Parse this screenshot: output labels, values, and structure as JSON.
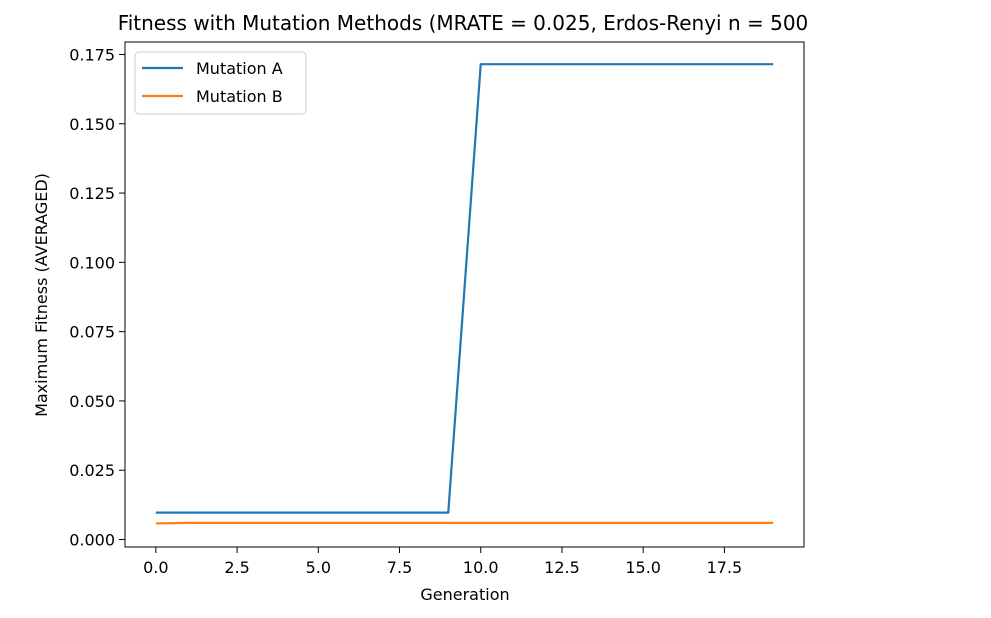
{
  "chart_data": {
    "type": "line",
    "title": "Fitness with Mutation Methods (MRATE = 0.025, Erdos-Renyi n = 500",
    "xlabel": "Generation",
    "ylabel": "Maximum Fitness (AVERAGED)",
    "xlim": [
      -0.95,
      19.95
    ],
    "ylim": [
      -0.0027,
      0.1795
    ],
    "xticks": [
      0.0,
      2.5,
      5.0,
      7.5,
      10.0,
      12.5,
      15.0,
      17.5
    ],
    "xtick_labels": [
      "0.0",
      "2.5",
      "5.0",
      "7.5",
      "10.0",
      "12.5",
      "15.0",
      "17.5"
    ],
    "yticks": [
      0.0,
      0.025,
      0.05,
      0.075,
      0.1,
      0.125,
      0.15,
      0.175
    ],
    "ytick_labels": [
      "0.000",
      "0.025",
      "0.050",
      "0.075",
      "0.100",
      "0.125",
      "0.150",
      "0.175"
    ],
    "grid": false,
    "legend_position": "top-left",
    "x": [
      0,
      1,
      2,
      3,
      4,
      5,
      6,
      7,
      8,
      9,
      10,
      11,
      12,
      13,
      14,
      15,
      16,
      17,
      18,
      19
    ],
    "series": [
      {
        "name": "Mutation A",
        "color": "#1f77b4",
        "values": [
          0.0097,
          0.0097,
          0.0097,
          0.0097,
          0.0097,
          0.0097,
          0.0097,
          0.0097,
          0.0097,
          0.0097,
          0.1715,
          0.1715,
          0.1715,
          0.1715,
          0.1715,
          0.1715,
          0.1715,
          0.1715,
          0.1715,
          0.1715
        ]
      },
      {
        "name": "Mutation B",
        "color": "#ff7f0e",
        "values": [
          0.0058,
          0.006,
          0.006,
          0.006,
          0.006,
          0.006,
          0.006,
          0.006,
          0.006,
          0.006,
          0.006,
          0.006,
          0.006,
          0.006,
          0.006,
          0.006,
          0.006,
          0.006,
          0.006,
          0.006
        ]
      }
    ]
  }
}
